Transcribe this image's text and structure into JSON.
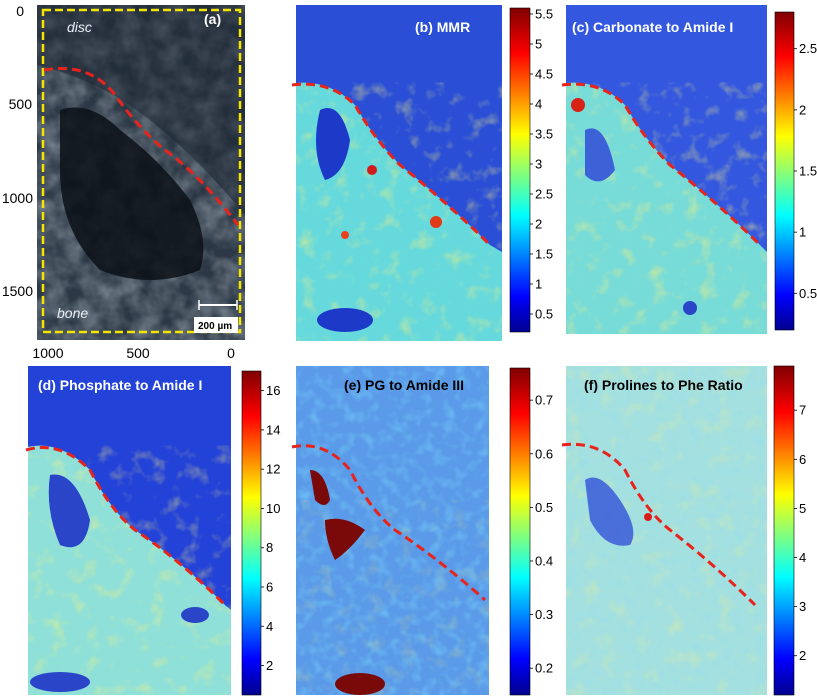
{
  "chart_data": [
    {
      "type": "heatmap",
      "panel": "(a)",
      "description_labels": [
        "disc",
        "bone"
      ],
      "scale_bar": "200 µm",
      "yticks": [
        "0",
        "500",
        "1000",
        "1500"
      ],
      "xticks": [
        "1000",
        "500",
        "0"
      ]
    },
    {
      "type": "heatmap",
      "panel": "(b) MMR",
      "colorbar_ticks": [
        "5.5",
        "5",
        "4.5",
        "4",
        "3.5",
        "3",
        "2.5",
        "2",
        "1.5",
        "1",
        "0.5"
      ],
      "colorbar_range": [
        0.2,
        5.6
      ]
    },
    {
      "type": "heatmap",
      "panel": "(c) Carbonate to Amide I",
      "colorbar_ticks": [
        "2.5",
        "2",
        "1.5",
        "1",
        "0.5"
      ],
      "colorbar_range": [
        0.2,
        2.8
      ]
    },
    {
      "type": "heatmap",
      "panel": "(d) Phosphate to Amide I",
      "colorbar_ticks": [
        "16",
        "14",
        "12",
        "10",
        "8",
        "6",
        "4",
        "2"
      ],
      "colorbar_range": [
        0.5,
        17
      ]
    },
    {
      "type": "heatmap",
      "panel": "(e) PG to Amide III",
      "colorbar_ticks": [
        "0.7",
        "0.6",
        "0.5",
        "0.4",
        "0.3",
        "0.2"
      ],
      "colorbar_range": [
        0.15,
        0.76
      ]
    },
    {
      "type": "heatmap",
      "panel": "(f) Prolines to Phe Ratio",
      "colorbar_ticks": [
        "7",
        "6",
        "5",
        "4",
        "3",
        "2"
      ],
      "colorbar_range": [
        1.2,
        7.9
      ]
    }
  ]
}
